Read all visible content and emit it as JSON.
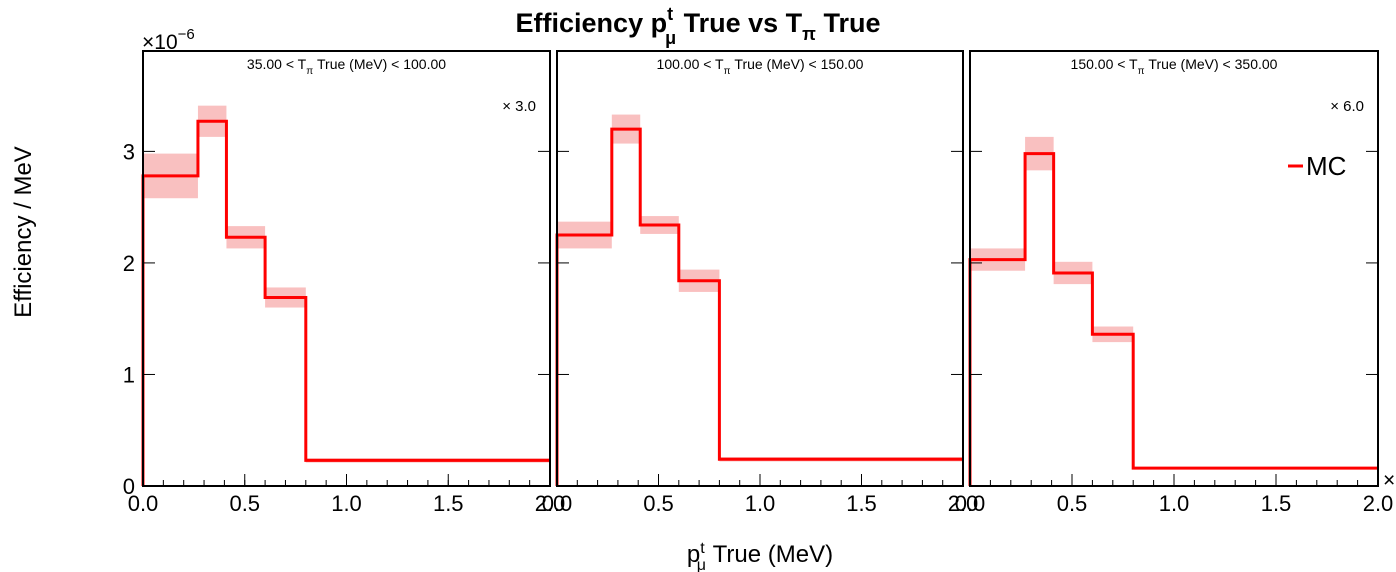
{
  "figure": {
    "title_main": "Efficiency p",
    "title_sup": "t",
    "title_sub": "μ",
    "title_mid": " True vs T",
    "title_sub2": "π",
    "title_end": " True",
    "ylabel": "Efficiency / MeV",
    "xlabel_main": "p",
    "xlabel_sup": "t",
    "xlabel_sub": "μ",
    "xlabel_end": " True (MeV)",
    "yexp_base": "×10",
    "yexp_power": "−6",
    "legend_label": "MC",
    "colors": {
      "line": "#ff0000",
      "band": "#f9c0c0",
      "frame": "#000000"
    }
  },
  "chart_data": [
    {
      "type": "line",
      "step": true,
      "panel_label_pre": "35.00 < T",
      "panel_label_sub": "π",
      "panel_label_post": " True (MeV) < 100.00",
      "scale_label": "× 3.0",
      "bin_edges": [
        0.0,
        0.27,
        0.41,
        0.6,
        0.8,
        2.0
      ],
      "series": [
        {
          "name": "MC",
          "values": [
            2.78,
            3.27,
            2.23,
            1.69,
            0.23
          ],
          "errors": [
            0.2,
            0.14,
            0.1,
            0.09,
            0.02
          ]
        }
      ],
      "xlim": [
        0,
        2.0
      ],
      "ylim": [
        0,
        3.9
      ],
      "xticks": [
        "0.0",
        "0.5",
        "1.0",
        "1.5",
        "2.0"
      ],
      "yticks": [
        "0",
        "1",
        "2",
        "3"
      ],
      "legend": false
    },
    {
      "type": "line",
      "step": true,
      "panel_label_pre": "100.00 < T",
      "panel_label_sub": "π",
      "panel_label_post": " True (MeV) < 150.00",
      "scale_label": "",
      "bin_edges": [
        0.0,
        0.27,
        0.41,
        0.6,
        0.8,
        2.0
      ],
      "series": [
        {
          "name": "MC",
          "values": [
            2.25,
            3.2,
            2.34,
            1.84,
            0.24
          ],
          "errors": [
            0.12,
            0.13,
            0.08,
            0.1,
            0.02
          ]
        }
      ],
      "xlim": [
        0,
        2.0
      ],
      "ylim": [
        0,
        3.9
      ],
      "xticks": [
        "0.0",
        "0.5",
        "1.0",
        "1.5",
        "2.0"
      ],
      "yticks": [],
      "legend": false
    },
    {
      "type": "line",
      "step": true,
      "panel_label_pre": "150.00 < T",
      "panel_label_sub": "π",
      "panel_label_post": " True (MeV) < 350.00",
      "scale_label": "× 6.0",
      "bin_edges": [
        0.0,
        0.27,
        0.41,
        0.6,
        0.8,
        2.0
      ],
      "series": [
        {
          "name": "MC",
          "values": [
            2.03,
            2.98,
            1.91,
            1.36,
            0.16
          ],
          "errors": [
            0.1,
            0.15,
            0.1,
            0.07,
            0.01
          ]
        }
      ],
      "xlim": [
        0,
        2.0
      ],
      "ylim": [
        0,
        3.9
      ],
      "xticks": [
        "0.0",
        "0.5",
        "1.0",
        "1.5",
        "2.0"
      ],
      "yticks": [],
      "legend": true
    }
  ]
}
